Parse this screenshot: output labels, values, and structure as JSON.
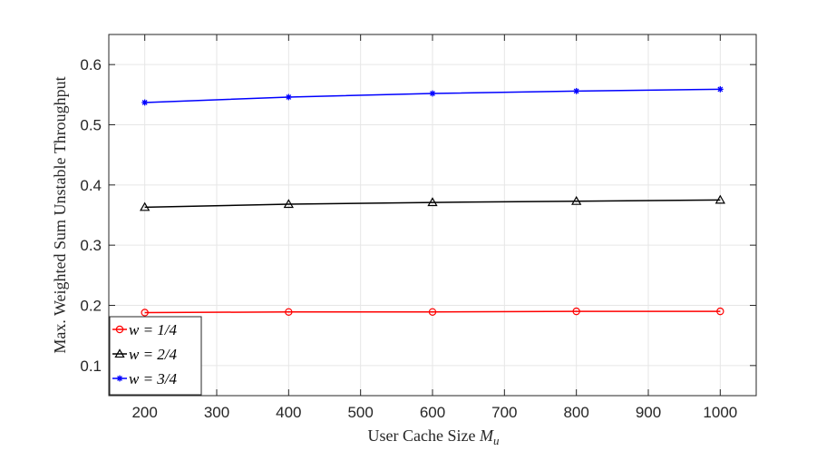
{
  "chart_data": {
    "type": "line",
    "title": "",
    "xlabel": "User Cache Size",
    "xlabel_symbol": "M",
    "xlabel_subscript": "u",
    "ylabel": "Max. Weighted Sum Unstable Throughput",
    "xlim": [
      150,
      1050
    ],
    "ylim": [
      0.05,
      0.65
    ],
    "xticks": [
      200,
      300,
      400,
      500,
      600,
      700,
      800,
      900,
      1000
    ],
    "yticks": [
      0.1,
      0.2,
      0.3,
      0.4,
      0.5,
      0.6
    ],
    "grid": true,
    "legend_position": "bottom-left",
    "x": [
      200,
      400,
      600,
      800,
      1000
    ],
    "series": [
      {
        "name": "w = 1/4",
        "color": "#ff0000",
        "marker": "circle",
        "values": [
          0.188,
          0.189,
          0.189,
          0.19,
          0.19
        ]
      },
      {
        "name": "w = 2/4",
        "color": "#000000",
        "marker": "triangle",
        "values": [
          0.363,
          0.368,
          0.371,
          0.373,
          0.375
        ]
      },
      {
        "name": "w = 3/4",
        "color": "#0000ff",
        "marker": "asterisk",
        "values": [
          0.537,
          0.546,
          0.552,
          0.556,
          0.559
        ]
      }
    ]
  }
}
